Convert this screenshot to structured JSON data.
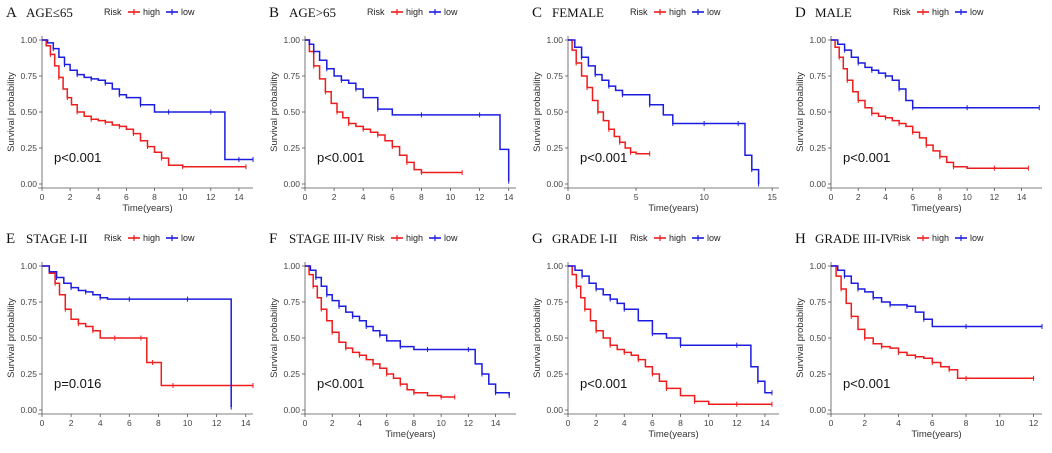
{
  "colors": {
    "high": "#ee1c1c",
    "low": "#1c1ce0",
    "axis": "#555555"
  },
  "chart_data": [
    {
      "type": "line",
      "label": "A",
      "title": "AGE≤65",
      "xlabel": "Time(years)",
      "ylabel": "Survival probability",
      "xticks": [
        0,
        2,
        4,
        6,
        8,
        10,
        12,
        14
      ],
      "xlim": [
        0,
        15
      ],
      "yticks": [
        "0.00",
        "0.25",
        "0.50",
        "0.75",
        "1.00"
      ],
      "ylim": [
        0,
        1
      ],
      "legend": {
        "title": "Risk",
        "entries": [
          "high",
          "low"
        ]
      },
      "pvalue": "p<0.001",
      "series": [
        {
          "name": "high",
          "x": [
            0,
            0.3,
            0.6,
            0.9,
            1.2,
            1.5,
            1.8,
            2.1,
            2.5,
            3,
            3.5,
            4,
            4.5,
            5,
            5.5,
            6,
            6.5,
            7,
            7.5,
            8,
            8.5,
            9,
            10,
            12,
            14.5
          ],
          "y": [
            1,
            0.96,
            0.9,
            0.82,
            0.74,
            0.66,
            0.6,
            0.55,
            0.5,
            0.47,
            0.45,
            0.44,
            0.43,
            0.41,
            0.4,
            0.38,
            0.35,
            0.3,
            0.26,
            0.22,
            0.18,
            0.13,
            0.12,
            0.12,
            0.12
          ]
        },
        {
          "name": "low",
          "x": [
            0,
            0.4,
            0.8,
            1.2,
            1.6,
            2,
            2.5,
            3,
            3.5,
            4,
            4.5,
            5,
            5.5,
            6,
            7,
            8,
            9,
            10,
            12,
            13,
            14,
            15
          ],
          "y": [
            1,
            0.98,
            0.94,
            0.88,
            0.83,
            0.79,
            0.76,
            0.74,
            0.73,
            0.72,
            0.7,
            0.66,
            0.62,
            0.6,
            0.55,
            0.5,
            0.5,
            0.5,
            0.5,
            0.17,
            0.17,
            0.17
          ]
        }
      ]
    },
    {
      "type": "line",
      "label": "B",
      "title": "AGE>65",
      "xlabel": "",
      "ylabel": "Survival probability",
      "xticks": [
        0,
        2,
        4,
        6,
        8,
        10,
        12,
        14
      ],
      "xlim": [
        0,
        14.5
      ],
      "yticks": [
        "0.00",
        "0.25",
        "0.50",
        "0.75",
        "1.00"
      ],
      "ylim": [
        0,
        1
      ],
      "legend": {
        "title": "Risk",
        "entries": [
          "high",
          "low"
        ]
      },
      "pvalue": "p<0.001",
      "series": [
        {
          "name": "high",
          "x": [
            0,
            0.3,
            0.6,
            1,
            1.4,
            1.8,
            2.2,
            2.6,
            3,
            3.5,
            4,
            4.5,
            5,
            5.5,
            6,
            6.5,
            7,
            7.5,
            8,
            9,
            10.8
          ],
          "y": [
            1,
            0.92,
            0.82,
            0.73,
            0.64,
            0.56,
            0.5,
            0.46,
            0.42,
            0.4,
            0.38,
            0.36,
            0.34,
            0.3,
            0.26,
            0.2,
            0.15,
            0.1,
            0.08,
            0.08,
            0.08
          ]
        },
        {
          "name": "low",
          "x": [
            0,
            0.3,
            0.6,
            1,
            1.5,
            2,
            2.5,
            3,
            3.5,
            4,
            5,
            6,
            8,
            10,
            12,
            13.4,
            14
          ],
          "y": [
            1,
            0.97,
            0.92,
            0.86,
            0.8,
            0.75,
            0.72,
            0.7,
            0.66,
            0.6,
            0.52,
            0.48,
            0.48,
            0.48,
            0.48,
            0.24,
            0.02
          ]
        }
      ]
    },
    {
      "type": "line",
      "label": "C",
      "title": "FEMALE",
      "xlabel": "Time(years)",
      "ylabel": "Survival probability",
      "xticks": [
        0,
        5,
        10,
        15
      ],
      "xlim": [
        0,
        15.5
      ],
      "yticks": [
        "0.00",
        "0.25",
        "0.50",
        "0.75",
        "1.00"
      ],
      "ylim": [
        0,
        1
      ],
      "legend": {
        "title": "Risk",
        "entries": [
          "high",
          "low"
        ]
      },
      "pvalue": "p<0.001",
      "series": [
        {
          "name": "high",
          "x": [
            0,
            0.3,
            0.6,
            1,
            1.4,
            1.8,
            2.2,
            2.6,
            3,
            3.4,
            3.8,
            4.2,
            4.6,
            5,
            6
          ],
          "y": [
            1,
            0.93,
            0.84,
            0.75,
            0.67,
            0.58,
            0.5,
            0.44,
            0.38,
            0.33,
            0.29,
            0.25,
            0.22,
            0.21,
            0.21
          ]
        },
        {
          "name": "low",
          "x": [
            0,
            0.5,
            1,
            1.5,
            2,
            2.5,
            3,
            3.5,
            4,
            5,
            6,
            7,
            7.7,
            9,
            10,
            11,
            12.5,
            13,
            13.5,
            14
          ],
          "y": [
            1,
            0.95,
            0.88,
            0.82,
            0.76,
            0.72,
            0.68,
            0.65,
            0.62,
            0.62,
            0.55,
            0.48,
            0.42,
            0.42,
            0.42,
            0.42,
            0.42,
            0.2,
            0.1,
            0.0
          ]
        }
      ]
    },
    {
      "type": "line",
      "label": "D",
      "title": "MALE",
      "xlabel": "Time(years)",
      "ylabel": "Survival probability",
      "xticks": [
        0,
        2,
        4,
        6,
        8,
        10,
        12,
        14
      ],
      "xlim": [
        0,
        15.5
      ],
      "yticks": [
        "0.00",
        "0.25",
        "0.50",
        "0.75",
        "1.00"
      ],
      "ylim": [
        0,
        1
      ],
      "legend": {
        "title": "Risk",
        "entries": [
          "high",
          "low"
        ]
      },
      "pvalue": "p<0.001",
      "series": [
        {
          "name": "high",
          "x": [
            0,
            0.3,
            0.6,
            0.9,
            1.2,
            1.6,
            2,
            2.5,
            3,
            3.5,
            4,
            4.5,
            5,
            5.5,
            6,
            6.5,
            7,
            7.5,
            8,
            8.5,
            9,
            10,
            12,
            14.5
          ],
          "y": [
            1,
            0.95,
            0.88,
            0.8,
            0.72,
            0.64,
            0.58,
            0.53,
            0.49,
            0.47,
            0.46,
            0.44,
            0.42,
            0.4,
            0.36,
            0.32,
            0.27,
            0.23,
            0.19,
            0.15,
            0.12,
            0.11,
            0.11,
            0.11
          ]
        },
        {
          "name": "low",
          "x": [
            0,
            0.5,
            1,
            1.5,
            2,
            2.5,
            3,
            3.5,
            4,
            4.5,
            5,
            5.5,
            6,
            8,
            10,
            12,
            15.3
          ],
          "y": [
            1,
            0.97,
            0.93,
            0.88,
            0.84,
            0.81,
            0.79,
            0.77,
            0.75,
            0.72,
            0.66,
            0.58,
            0.53,
            0.53,
            0.53,
            0.53,
            0.53
          ]
        }
      ]
    },
    {
      "type": "line",
      "label": "E",
      "title": "STAGE I-II",
      "xlabel": "",
      "ylabel": "Survival probability",
      "xticks": [
        0,
        2,
        4,
        6,
        8,
        10,
        12,
        14
      ],
      "xlim": [
        0,
        14.5
      ],
      "yticks": [
        "0.00",
        "0.25",
        "0.50",
        "0.75",
        "1.00"
      ],
      "ylim": [
        0,
        1
      ],
      "legend": {
        "title": "Risk",
        "entries": [
          "high",
          "low"
        ]
      },
      "pvalue": "p=0.016",
      "series": [
        {
          "name": "high",
          "x": [
            0,
            0.5,
            0.9,
            1.2,
            1.6,
            2,
            2.5,
            3,
            3.5,
            4,
            5,
            6,
            6.8,
            7.2,
            7.6,
            8.2,
            9,
            11,
            13,
            14.5
          ],
          "y": [
            1,
            0.95,
            0.88,
            0.8,
            0.7,
            0.63,
            0.6,
            0.58,
            0.55,
            0.5,
            0.5,
            0.5,
            0.5,
            0.33,
            0.33,
            0.17,
            0.17,
            0.17,
            0.17,
            0.17
          ]
        },
        {
          "name": "low",
          "x": [
            0,
            0.5,
            1,
            1.5,
            2,
            2.5,
            3,
            3.5,
            4,
            4.5,
            6,
            8,
            10,
            12,
            13
          ],
          "y": [
            1,
            0.96,
            0.92,
            0.88,
            0.85,
            0.83,
            0.82,
            0.8,
            0.78,
            0.77,
            0.77,
            0.77,
            0.77,
            0.77,
            0.02
          ]
        }
      ]
    },
    {
      "type": "line",
      "label": "F",
      "title": "STAGE III-IV",
      "xlabel": "Time(years)",
      "ylabel": "Survival probability",
      "xticks": [
        0,
        2,
        4,
        6,
        8,
        10,
        12,
        14
      ],
      "xlim": [
        0,
        15.5
      ],
      "yticks": [
        "0.00",
        "0.25",
        "0.50",
        "0.75",
        "1.00"
      ],
      "ylim": [
        0,
        1
      ],
      "legend": {
        "title": "Risk",
        "entries": [
          "high",
          "low"
        ]
      },
      "pvalue": "p<0.001",
      "series": [
        {
          "name": "high",
          "x": [
            0,
            0.3,
            0.6,
            0.9,
            1.2,
            1.6,
            2,
            2.5,
            3,
            3.5,
            4,
            4.5,
            5,
            5.5,
            6,
            6.5,
            7,
            7.5,
            8,
            9,
            10,
            11
          ],
          "y": [
            1,
            0.94,
            0.86,
            0.78,
            0.7,
            0.62,
            0.54,
            0.47,
            0.43,
            0.4,
            0.38,
            0.35,
            0.32,
            0.29,
            0.25,
            0.22,
            0.18,
            0.14,
            0.12,
            0.1,
            0.09,
            0.09
          ]
        },
        {
          "name": "low",
          "x": [
            0,
            0.4,
            0.8,
            1.2,
            1.6,
            2,
            2.5,
            3,
            3.5,
            4,
            4.5,
            5,
            5.5,
            6,
            7,
            8,
            9,
            10,
            12,
            12.5,
            13,
            13.5,
            14,
            15
          ],
          "y": [
            1,
            0.97,
            0.92,
            0.86,
            0.8,
            0.76,
            0.72,
            0.68,
            0.65,
            0.62,
            0.58,
            0.55,
            0.52,
            0.48,
            0.44,
            0.42,
            0.42,
            0.42,
            0.42,
            0.32,
            0.25,
            0.18,
            0.12,
            0.1
          ]
        }
      ]
    },
    {
      "type": "line",
      "label": "G",
      "title": "GRADE I-II",
      "xlabel": "Time(years)",
      "ylabel": "Survival probability",
      "xticks": [
        0,
        2,
        4,
        6,
        8,
        10,
        12,
        14
      ],
      "xlim": [
        0,
        15
      ],
      "yticks": [
        "0.00",
        "0.25",
        "0.50",
        "0.75",
        "1.00"
      ],
      "ylim": [
        0,
        1
      ],
      "legend": {
        "title": "Risk",
        "entries": [
          "high",
          "low"
        ]
      },
      "pvalue": "p<0.001",
      "series": [
        {
          "name": "high",
          "x": [
            0,
            0.3,
            0.6,
            0.9,
            1.2,
            1.6,
            2,
            2.5,
            3,
            3.5,
            4,
            4.5,
            5,
            5.5,
            6,
            6.5,
            7,
            8,
            9,
            10,
            12,
            14.5
          ],
          "y": [
            1,
            0.94,
            0.86,
            0.78,
            0.7,
            0.62,
            0.55,
            0.5,
            0.45,
            0.42,
            0.4,
            0.38,
            0.35,
            0.3,
            0.25,
            0.2,
            0.15,
            0.1,
            0.06,
            0.04,
            0.04,
            0.04
          ]
        },
        {
          "name": "low",
          "x": [
            0,
            0.5,
            1,
            1.5,
            2,
            2.5,
            3,
            3.5,
            4,
            5,
            6,
            7,
            8,
            10,
            12,
            13,
            13.5,
            14,
            14.5
          ],
          "y": [
            1,
            0.97,
            0.93,
            0.88,
            0.84,
            0.8,
            0.77,
            0.74,
            0.7,
            0.62,
            0.53,
            0.5,
            0.45,
            0.45,
            0.45,
            0.3,
            0.2,
            0.12,
            0.12
          ]
        }
      ]
    },
    {
      "type": "line",
      "label": "H",
      "title": "GRADE III-IV",
      "xlabel": "Time(years)",
      "ylabel": "Survival probability",
      "xticks": [
        0,
        2,
        4,
        6,
        8,
        10,
        12
      ],
      "xlim": [
        0,
        12.5
      ],
      "yticks": [
        "0.00",
        "0.25",
        "0.50",
        "0.75",
        "1.00"
      ],
      "ylim": [
        0,
        1
      ],
      "legend": {
        "title": "Risk",
        "entries": [
          "high",
          "low"
        ]
      },
      "pvalue": "p<0.001",
      "series": [
        {
          "name": "high",
          "x": [
            0,
            0.3,
            0.6,
            0.9,
            1.2,
            1.6,
            2,
            2.5,
            3,
            3.5,
            4,
            4.5,
            5,
            5.5,
            6,
            6.5,
            7,
            7.5,
            8,
            10,
            12
          ],
          "y": [
            1,
            0.93,
            0.84,
            0.74,
            0.65,
            0.56,
            0.5,
            0.46,
            0.44,
            0.43,
            0.4,
            0.38,
            0.37,
            0.36,
            0.33,
            0.3,
            0.28,
            0.22,
            0.22,
            0.22,
            0.22
          ]
        },
        {
          "name": "low",
          "x": [
            0,
            0.4,
            0.8,
            1.2,
            1.6,
            2,
            2.5,
            3,
            3.5,
            4,
            4.5,
            5,
            5.5,
            6,
            8,
            10,
            12.5
          ],
          "y": [
            1,
            0.97,
            0.93,
            0.88,
            0.84,
            0.82,
            0.78,
            0.75,
            0.73,
            0.73,
            0.72,
            0.68,
            0.63,
            0.58,
            0.58,
            0.58,
            0.58
          ]
        }
      ]
    }
  ]
}
